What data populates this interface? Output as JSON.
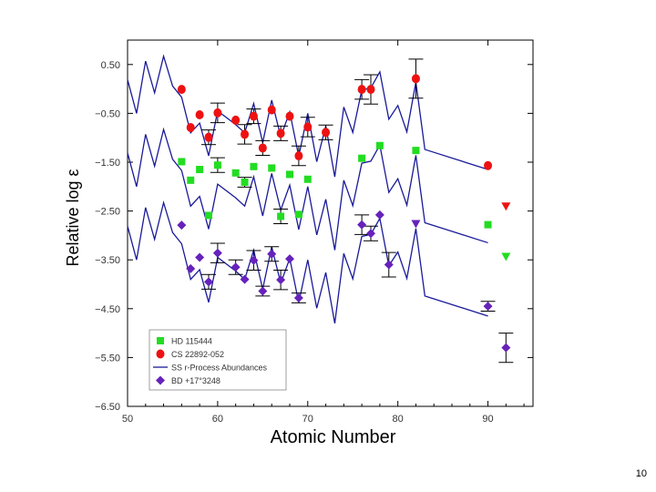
{
  "page": {
    "number": "10"
  },
  "chart_data": {
    "type": "scatter",
    "title": "",
    "xlabel": "Atomic Number",
    "ylabel": "Relative log ε",
    "xlim": [
      50,
      95
    ],
    "ylim": [
      -6.5,
      1.0
    ],
    "x_ticks": [
      50,
      60,
      70,
      80,
      90
    ],
    "y_ticks": [
      0.5,
      -0.5,
      -1.5,
      -2.5,
      -3.5,
      -4.5,
      -5.5,
      -6.5
    ],
    "y_tick_labels": [
      "0.50",
      "−0.50",
      "−1.50",
      "−2.50",
      "−3.50",
      "−4.50",
      "−5.50",
      "−6.50"
    ],
    "legend_placement": "bottom-left",
    "colors": {
      "hd115444": "#22dd22",
      "cs22892": "#ee1111",
      "ss": "#1a1a99",
      "bd17": "#6622bb"
    },
    "series": [
      {
        "name": "HD 115444",
        "key": "hd115444",
        "marker": "square",
        "x": [
          56,
          57,
          58,
          59,
          60,
          62,
          63,
          64,
          66,
          67,
          68,
          69,
          70,
          76,
          78,
          82,
          90
        ],
        "y": [
          -1.49,
          -1.87,
          -1.65,
          -2.59,
          -1.56,
          -1.72,
          -1.91,
          -1.59,
          -1.62,
          -2.61,
          -1.75,
          -2.57,
          -1.85,
          -1.42,
          -1.16,
          -1.26,
          -2.78
        ],
        "upper_limits_x": [
          92
        ],
        "upper_limits_y": [
          -3.43
        ],
        "error_bars_x": [
          60,
          63,
          67
        ],
        "error_bars": [
          0.15,
          0.1,
          0.15
        ]
      },
      {
        "name": "CS 22892-052",
        "key": "cs22892",
        "marker": "circle",
        "x": [
          56,
          57,
          58,
          59,
          60,
          62,
          63,
          64,
          65,
          66,
          67,
          68,
          69,
          70,
          72,
          76,
          77,
          82,
          90
        ],
        "y": [
          -0.01,
          -0.79,
          -0.53,
          -0.99,
          -0.49,
          -0.64,
          -0.93,
          -0.56,
          -1.21,
          -0.43,
          -0.91,
          -0.56,
          -1.37,
          -0.78,
          -0.89,
          -0.01,
          -0.01,
          0.21,
          -1.57
        ],
        "upper_limits_x": [
          92
        ],
        "upper_limits_y": [
          -2.4
        ],
        "error_bars_x": [
          59,
          60,
          63,
          64,
          65,
          67,
          69,
          70,
          72,
          76,
          77,
          82
        ],
        "error_bars": [
          0.15,
          0.2,
          0.2,
          0.15,
          0.15,
          0.15,
          0.2,
          0.2,
          0.15,
          0.2,
          0.3,
          0.4
        ]
      },
      {
        "name": "SS r-Process Abundances",
        "key": "ss",
        "line": true,
        "offsets": [
          0,
          -1.5,
          -3.0
        ],
        "x": [
          50,
          51,
          52,
          53,
          54,
          55,
          56,
          57,
          58,
          59,
          60,
          62,
          63,
          64,
          65,
          66,
          67,
          68,
          69,
          70,
          71,
          72,
          73,
          74,
          75,
          76,
          77,
          78,
          79,
          80,
          81,
          82,
          83,
          90
        ],
        "y": [
          0.19,
          -0.5,
          0.57,
          -0.08,
          0.67,
          0.06,
          -0.17,
          -0.9,
          -0.7,
          -1.37,
          -0.45,
          -0.73,
          -0.9,
          -0.3,
          -1.1,
          -0.23,
          -0.98,
          -0.47,
          -1.38,
          -0.5,
          -1.49,
          -0.76,
          -1.8,
          -0.37,
          -0.89,
          -0.02,
          0.02,
          0.35,
          -0.62,
          -0.34,
          -0.88,
          0.14,
          -1.24,
          -1.65
        ]
      },
      {
        "name": "BD +17°3248",
        "key": "bd17",
        "marker": "diamond",
        "x": [
          56,
          57,
          58,
          59,
          60,
          62,
          63,
          64,
          65,
          66,
          67,
          68,
          69,
          76,
          77,
          78,
          79,
          90
        ],
        "y": [
          -2.79,
          -3.68,
          -3.45,
          -3.95,
          -3.36,
          -3.65,
          -3.9,
          -3.51,
          -4.14,
          -3.38,
          -3.91,
          -3.48,
          -4.28,
          -2.78,
          -2.96,
          -2.58,
          -3.6,
          -4.45
        ],
        "upper_limits_x": [
          82
        ],
        "upper_limits_y": [
          -2.76
        ],
        "extra_points_x": [
          92
        ],
        "extra_points_y": [
          -5.3
        ],
        "error_bars_x": [
          59,
          60,
          62,
          64,
          65,
          66,
          67,
          69,
          76,
          77,
          79,
          90,
          92
        ],
        "error_bars": [
          0.15,
          0.2,
          0.15,
          0.2,
          0.1,
          0.15,
          0.2,
          0.1,
          0.2,
          0.15,
          0.25,
          0.1,
          0.3
        ]
      }
    ],
    "legend": [
      {
        "label": "HD 115444",
        "key": "hd115444",
        "marker": "square"
      },
      {
        "label": "CS 22892-052",
        "key": "cs22892",
        "marker": "circle"
      },
      {
        "label": "SS r-Process Abundances",
        "key": "ss",
        "marker": "line"
      },
      {
        "label": "BD +17°3248",
        "key": "bd17",
        "marker": "diamond"
      }
    ]
  }
}
